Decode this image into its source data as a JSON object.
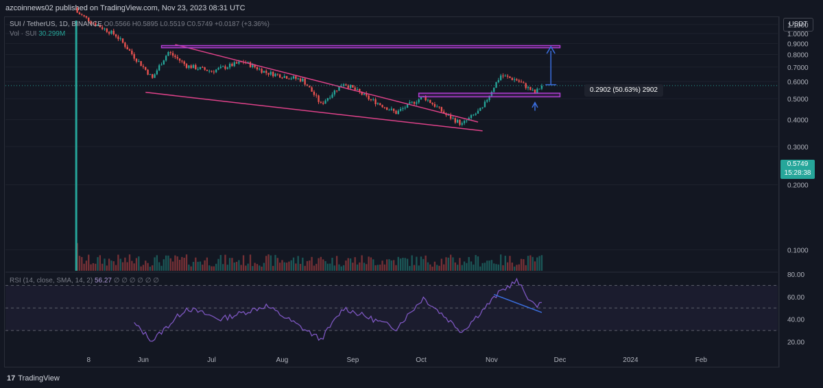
{
  "header": {
    "publisher_line": "azcoinnews02 published on TradingView.com, Nov 23, 2023 08:31 UTC"
  },
  "legend": {
    "symbol": "SUI / TetherUS, 1D, BINANCE",
    "ohlc": "O0.5566 H0.5895 L0.5519 C0.5749 +0.0187 (+3.36%)",
    "volume_label": "Vol · SUI",
    "volume_value": "30.299M",
    "rsi_label": "RSI (14, close, SMA, 14, 2)",
    "rsi_value": "56.27",
    "rsi_placeholders": "∅ ∅ ∅ ∅ ∅ ∅"
  },
  "toolbar": {
    "currency": "USDT"
  },
  "price_tag": {
    "price": "0.5749",
    "countdown": "15:28:38"
  },
  "measure": {
    "label": "0.2902 (50.63%) 2902"
  },
  "branding": {
    "logo_text": "TradingView",
    "logo_mark": "17"
  },
  "colors": {
    "background": "#131722",
    "up": "#26a69a",
    "down": "#ef5350",
    "pattern": "#e0428a",
    "zone": "#b43ed6",
    "measure": "#3b6fe0",
    "rsi_line": "#7e57c2",
    "divergence": "#3b6fe0"
  },
  "chart_data": [
    {
      "type": "candlestick",
      "title": "SUI / TetherUS, 1D, BINANCE",
      "ylim": [
        0.08,
        1.2
      ],
      "price_axis_ticks": [
        "1.1000",
        "1.0000",
        "0.9000",
        "0.8000",
        "0.7000",
        "0.6000",
        "0.5000",
        "0.4000",
        "0.3000",
        "0.2000",
        "0.1000"
      ],
      "time_axis_ticks": [
        "8",
        "Jun",
        "Jul",
        "Aug",
        "Sep",
        "Oct",
        "Nov",
        "Dec",
        "2024",
        "Feb"
      ],
      "key_points": [
        {
          "x": "2023-05-03",
          "close": 1.25
        },
        {
          "x": "2023-05-10",
          "close": 1.12
        },
        {
          "x": "2023-05-20",
          "close": 0.98
        },
        {
          "x": "2023-05-28",
          "close": 0.78
        },
        {
          "x": "2023-06-05",
          "close": 0.62
        },
        {
          "x": "2023-06-12",
          "close": 0.82
        },
        {
          "x": "2023-06-20",
          "close": 0.71
        },
        {
          "x": "2023-07-01",
          "close": 0.67
        },
        {
          "x": "2023-07-15",
          "close": 0.74
        },
        {
          "x": "2023-07-25",
          "close": 0.66
        },
        {
          "x": "2023-08-10",
          "close": 0.61
        },
        {
          "x": "2023-08-18",
          "close": 0.47
        },
        {
          "x": "2023-08-28",
          "close": 0.59
        },
        {
          "x": "2023-09-08",
          "close": 0.5
        },
        {
          "x": "2023-09-20",
          "close": 0.43
        },
        {
          "x": "2023-10-02",
          "close": 0.51
        },
        {
          "x": "2023-10-12",
          "close": 0.42
        },
        {
          "x": "2023-10-19",
          "close": 0.38
        },
        {
          "x": "2023-10-28",
          "close": 0.45
        },
        {
          "x": "2023-11-05",
          "close": 0.64
        },
        {
          "x": "2023-11-12",
          "close": 0.61
        },
        {
          "x": "2023-11-20",
          "close": 0.53
        },
        {
          "x": "2023-11-23",
          "close": 0.5749
        }
      ],
      "resistance_zone": [
        0.86,
        0.88
      ],
      "support_zone": [
        0.51,
        0.53
      ],
      "measure_from": 0.58,
      "measure_to": 0.87,
      "last_price": 0.5749
    },
    {
      "type": "line",
      "name": "RSI (14, close, SMA, 14, 2)",
      "ylim": [
        10,
        80
      ],
      "ticks": [
        "80.00",
        "60.00",
        "40.00",
        "20.00"
      ],
      "bands": [
        70,
        50,
        30
      ],
      "key_points": [
        {
          "x": "2023-05-28",
          "y": 36
        },
        {
          "x": "2023-06-05",
          "y": 21
        },
        {
          "x": "2023-06-20",
          "y": 50
        },
        {
          "x": "2023-07-05",
          "y": 40
        },
        {
          "x": "2023-07-25",
          "y": 52
        },
        {
          "x": "2023-08-18",
          "y": 22
        },
        {
          "x": "2023-08-28",
          "y": 50
        },
        {
          "x": "2023-09-20",
          "y": 32
        },
        {
          "x": "2023-10-02",
          "y": 59
        },
        {
          "x": "2023-10-19",
          "y": 29
        },
        {
          "x": "2023-11-05",
          "y": 65
        },
        {
          "x": "2023-11-12",
          "y": 74
        },
        {
          "x": "2023-11-20",
          "y": 51
        },
        {
          "x": "2023-11-23",
          "y": 56.27
        }
      ]
    }
  ]
}
